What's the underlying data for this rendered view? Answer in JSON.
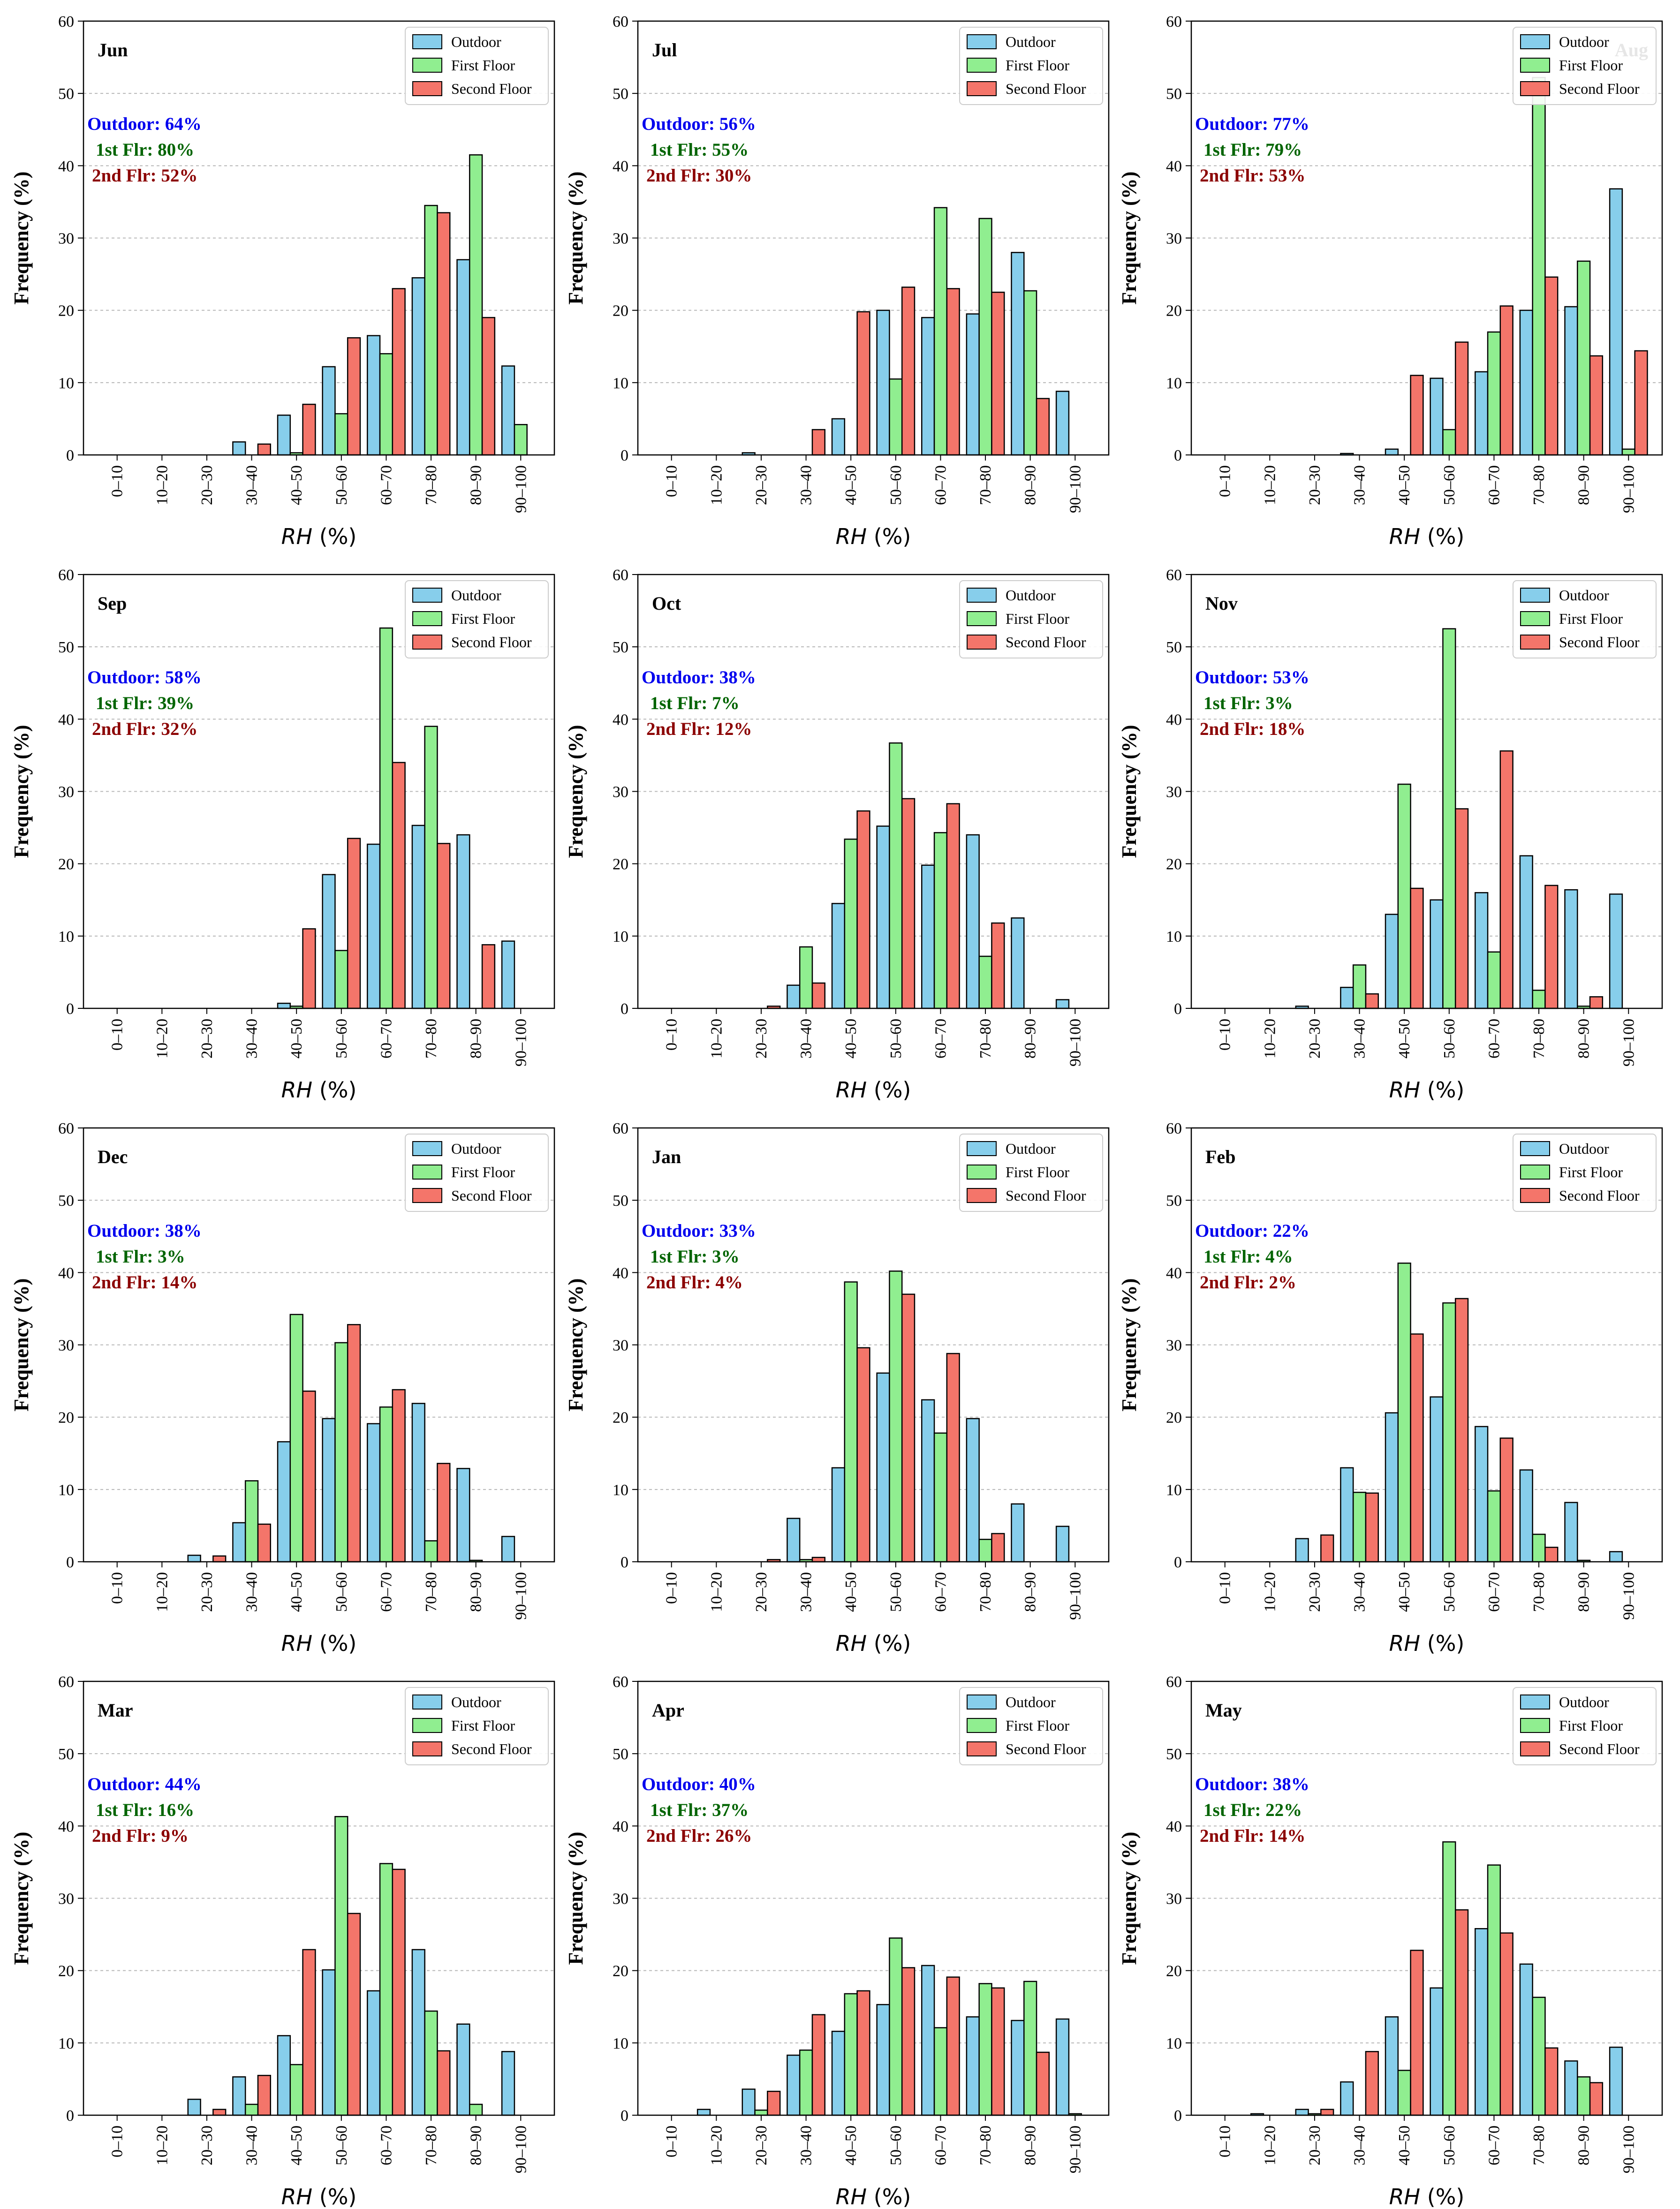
{
  "chart_data": {
    "type": "bar",
    "categories": [
      "0–10",
      "10–20",
      "20–30",
      "30–40",
      "40–50",
      "50–60",
      "60–70",
      "70–80",
      "80–90",
      "90–100"
    ],
    "xlabel_italic": "RH",
    "xlabel_rest": " (%)",
    "ylabel": "Frequency (%)",
    "ylim": [
      0,
      60
    ],
    "yticks": [
      "0",
      "10",
      "20",
      "30",
      "40",
      "50",
      "60"
    ],
    "legend": [
      "Outdoor",
      "First Floor",
      "Second Floor"
    ],
    "colors": {
      "outdoor": "#87CEEB",
      "first": "#90EE90",
      "second": "#F4756A",
      "ann_outdoor": "#0000EE",
      "ann_first": "#006400",
      "ann_second": "#8B0000"
    },
    "panels": [
      {
        "month": "Jun",
        "ann": [
          "Outdoor: 64%",
          "1st Flr: 80%",
          "2nd Flr: 52%"
        ],
        "outdoor": [
          0,
          0,
          0,
          1.8,
          5.5,
          12.2,
          16.5,
          24.5,
          27,
          12.3
        ],
        "first": [
          0,
          0,
          0,
          0,
          0.3,
          5.7,
          14,
          34.5,
          41.5,
          4.2
        ],
        "second": [
          0,
          0,
          0,
          1.5,
          7,
          16.2,
          23,
          33.5,
          19,
          0
        ]
      },
      {
        "month": "Jul",
        "ann": [
          "Outdoor: 56%",
          "1st Flr: 55%",
          "2nd Flr: 30%"
        ],
        "outdoor": [
          0,
          0,
          0.3,
          0,
          5,
          20,
          19,
          19.5,
          28,
          8.8
        ],
        "first": [
          0,
          0,
          0,
          0,
          0,
          10.5,
          34.2,
          32.7,
          22.7,
          0
        ],
        "second": [
          0,
          0,
          0,
          3.5,
          19.8,
          23.2,
          23,
          22.5,
          7.8,
          0
        ]
      },
      {
        "month": "Aug",
        "ann": [
          "Outdoor: 77%",
          "1st Flr: 79%",
          "2nd Flr: 53%"
        ],
        "outdoor": [
          0,
          0,
          0,
          0.2,
          0.8,
          10.6,
          11.5,
          20,
          20.5,
          36.8
        ],
        "first": [
          0,
          0,
          0,
          0,
          0,
          3.5,
          17,
          52.2,
          26.8,
          0.8
        ],
        "second": [
          0,
          0,
          0,
          0,
          11,
          15.6,
          20.6,
          24.6,
          13.7,
          14.4
        ]
      },
      {
        "month": "Sep",
        "ann": [
          "Outdoor: 58%",
          "1st Flr: 39%",
          "2nd Flr: 32%"
        ],
        "outdoor": [
          0,
          0,
          0,
          0,
          0.7,
          18.5,
          22.7,
          25.3,
          24,
          9.3
        ],
        "first": [
          0,
          0,
          0,
          0,
          0.3,
          8,
          52.6,
          39,
          0,
          0
        ],
        "second": [
          0,
          0,
          0,
          0,
          11,
          23.5,
          34,
          22.8,
          8.8,
          0
        ]
      },
      {
        "month": "Oct",
        "ann": [
          "Outdoor: 38%",
          "1st Flr: 7%",
          "2nd Flr: 12%"
        ],
        "outdoor": [
          0,
          0,
          0,
          3.2,
          14.5,
          25.2,
          19.8,
          24,
          12.5,
          1.2
        ],
        "first": [
          0,
          0,
          0,
          8.5,
          23.4,
          36.7,
          24.3,
          7.2,
          0,
          0
        ],
        "second": [
          0,
          0,
          0.3,
          3.5,
          27.3,
          29,
          28.3,
          11.8,
          0,
          0
        ]
      },
      {
        "month": "Nov",
        "ann": [
          "Outdoor: 53%",
          "1st Flr: 3%",
          "2nd Flr: 18%"
        ],
        "outdoor": [
          0,
          0,
          0.3,
          2.9,
          13,
          15,
          16,
          21.1,
          16.4,
          15.8
        ],
        "first": [
          0,
          0,
          0,
          6,
          31,
          52.5,
          7.8,
          2.5,
          0.3,
          0
        ],
        "second": [
          0,
          0,
          0,
          2,
          16.6,
          27.6,
          35.6,
          17,
          1.6,
          0
        ]
      },
      {
        "month": "Dec",
        "ann": [
          "Outdoor: 38%",
          "1st Flr: 3%",
          "2nd Flr: 14%"
        ],
        "outdoor": [
          0,
          0,
          0.9,
          5.4,
          16.6,
          19.8,
          19.1,
          21.9,
          12.9,
          3.5
        ],
        "first": [
          0,
          0,
          0,
          11.2,
          34.2,
          30.3,
          21.4,
          2.9,
          0.2,
          0
        ],
        "second": [
          0,
          0,
          0.8,
          5.2,
          23.6,
          32.8,
          23.8,
          13.6,
          0,
          0
        ]
      },
      {
        "month": "Jan",
        "ann": [
          "Outdoor: 33%",
          "1st Flr: 3%",
          "2nd Flr: 4%"
        ],
        "outdoor": [
          0,
          0,
          0,
          6,
          13,
          26.1,
          22.4,
          19.8,
          8,
          4.9
        ],
        "first": [
          0,
          0,
          0,
          0.3,
          38.7,
          40.2,
          17.8,
          3.1,
          0,
          0
        ],
        "second": [
          0,
          0,
          0.3,
          0.6,
          29.6,
          37,
          28.8,
          3.9,
          0,
          0
        ]
      },
      {
        "month": "Feb",
        "ann": [
          "Outdoor: 22%",
          "1st Flr: 4%",
          "2nd Flr: 2%"
        ],
        "outdoor": [
          0,
          0,
          3.2,
          13,
          20.6,
          22.8,
          18.7,
          12.7,
          8.2,
          1.4
        ],
        "first": [
          0,
          0,
          0,
          9.6,
          41.3,
          35.8,
          9.8,
          3.8,
          0.2,
          0
        ],
        "second": [
          0,
          0,
          3.7,
          9.5,
          31.5,
          36.4,
          17.1,
          2,
          0,
          0
        ]
      },
      {
        "month": "Mar",
        "ann": [
          "Outdoor: 44%",
          "1st Flr: 16%",
          "2nd Flr: 9%"
        ],
        "outdoor": [
          0,
          0,
          2.2,
          5.3,
          11,
          20.1,
          17.2,
          22.9,
          12.6,
          8.8
        ],
        "first": [
          0,
          0,
          0,
          1.5,
          7,
          41.3,
          34.8,
          14.4,
          1.5,
          0
        ],
        "second": [
          0,
          0,
          0.8,
          5.5,
          22.9,
          27.9,
          34,
          8.9,
          0,
          0
        ]
      },
      {
        "month": "Apr",
        "ann": [
          "Outdoor: 40%",
          "1st Flr: 37%",
          "2nd Flr: 26%"
        ],
        "outdoor": [
          0,
          0.8,
          3.6,
          8.3,
          11.6,
          15.3,
          20.7,
          13.6,
          13.1,
          13.3
        ],
        "first": [
          0,
          0,
          0.7,
          9,
          16.8,
          24.5,
          12.1,
          18.2,
          18.5,
          0.2
        ],
        "second": [
          0,
          0,
          3.3,
          13.9,
          17.2,
          20.4,
          19.1,
          17.6,
          8.7,
          0
        ]
      },
      {
        "month": "May",
        "ann": [
          "Outdoor: 38%",
          "1st Flr: 22%",
          "2nd Flr: 14%"
        ],
        "outdoor": [
          0,
          0.2,
          0.8,
          4.6,
          13.6,
          17.6,
          25.8,
          20.9,
          7.5,
          9.4
        ],
        "first": [
          0,
          0,
          0.2,
          0,
          6.2,
          37.8,
          34.6,
          16.3,
          5.3,
          0
        ],
        "second": [
          0,
          0,
          0.8,
          8.8,
          22.8,
          28.4,
          25.2,
          9.3,
          4.5,
          0
        ]
      }
    ]
  }
}
